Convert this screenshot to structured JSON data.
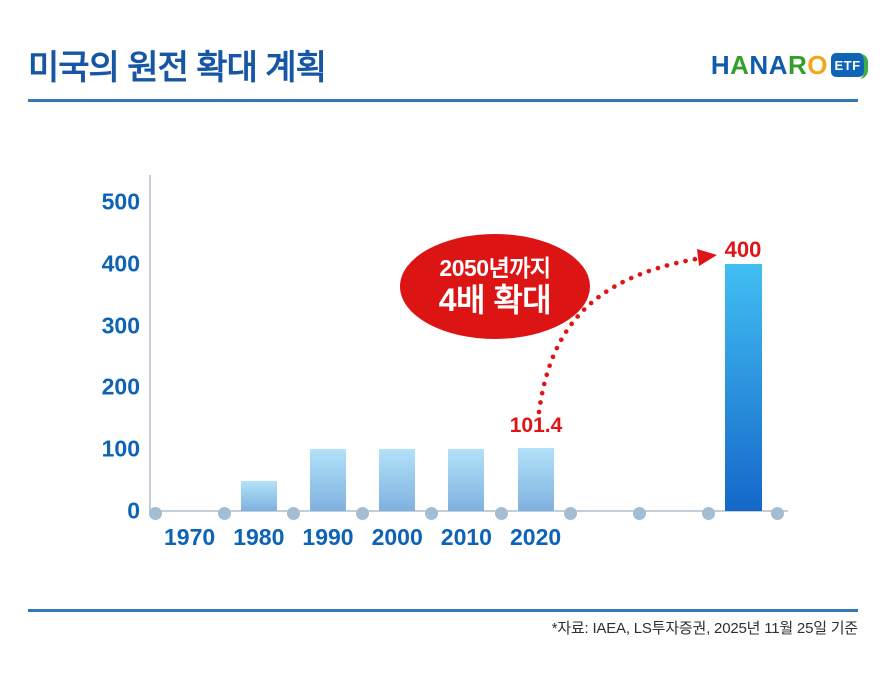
{
  "header": {
    "title": "미국의 원전 확대 계획",
    "logo": {
      "brand_letters": [
        {
          "ch": "H",
          "color": "#0f5cab"
        },
        {
          "ch": "A",
          "color": "#33a02c"
        },
        {
          "ch": "N",
          "color": "#0f5cab"
        },
        {
          "ch": "A",
          "color": "#0f5cab"
        },
        {
          "ch": "R",
          "color": "#33a02c"
        },
        {
          "ch": "O",
          "color": "#f2a71b"
        }
      ],
      "badge_text": "ETF",
      "badge_bg": "#0f64b8",
      "badge_leaf_color": "#3fae49"
    }
  },
  "chart_data": {
    "type": "bar",
    "title": "미국의 원전 확대 계획",
    "categories": [
      "1970",
      "1980",
      "1990",
      "2000",
      "2010",
      "2020"
    ],
    "values": [
      0,
      48,
      100,
      100,
      100,
      101.4
    ],
    "projected_bar": {
      "period": "2050",
      "value": 400,
      "value_label": "400",
      "slot": 8
    },
    "value_label_2020": "101.4",
    "yticks": [
      0,
      100,
      200,
      300,
      400,
      500
    ],
    "ylim": [
      0,
      500
    ],
    "xlabel": "",
    "ylabel": "",
    "grid": false,
    "legend": null,
    "annotation": {
      "line1": "2050년까지",
      "line2": "4배 확대"
    },
    "colors": {
      "bar_top": "#b2e2f9",
      "bar_bottom": "#7fb1e0",
      "projected_top": "#41bff2",
      "projected_bottom": "#1567c9",
      "axis": "#c5cdd6",
      "dot": "#a3bed2",
      "tick_label": "#0d63b5",
      "accent_red": "#e01414",
      "bubble_red": "#dd1414"
    }
  },
  "footer": {
    "source": "*자료: IAEA, LS투자증권, 2025년 11월 25일 기준"
  }
}
